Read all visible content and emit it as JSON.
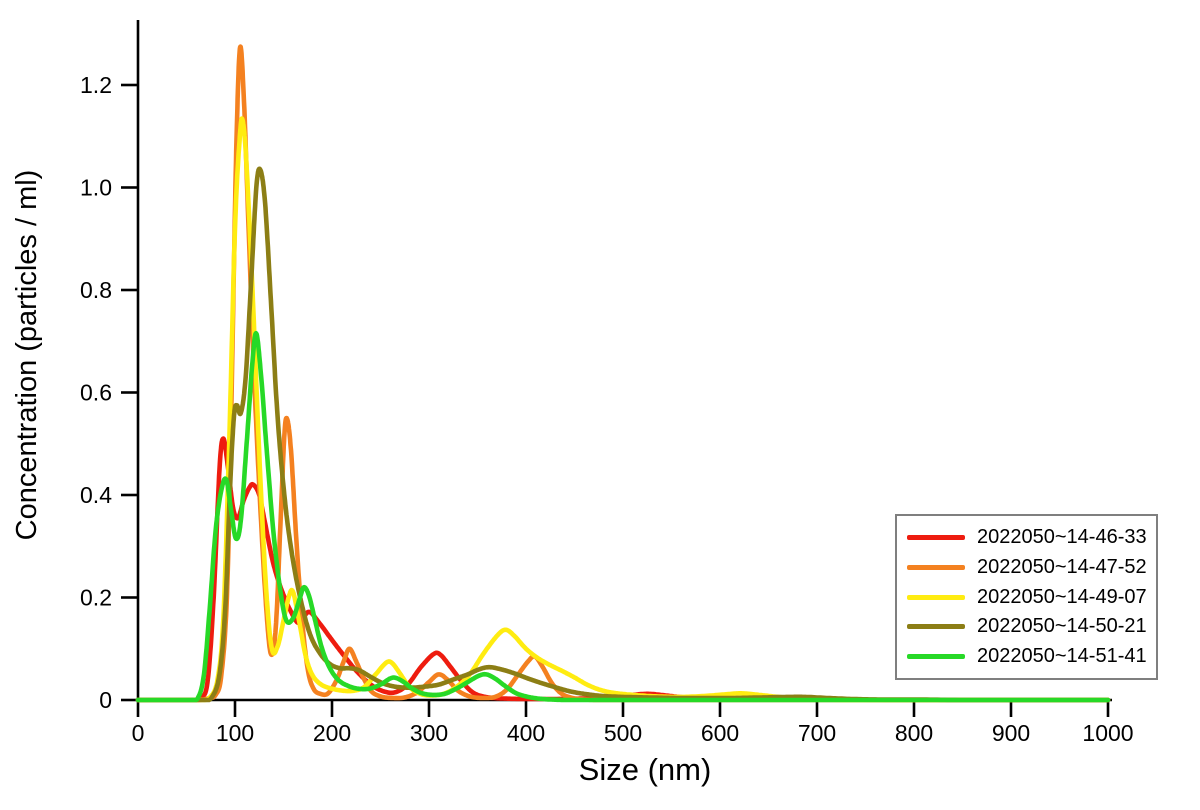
{
  "chart_data": {
    "type": "line",
    "title": "",
    "xlabel": "Size (nm)",
    "ylabel": "Concentration (particles / ml)",
    "xlim": [
      0,
      1000
    ],
    "ylim": [
      0,
      1.3
    ],
    "x_ticks": [
      0,
      100,
      200,
      300,
      400,
      500,
      600,
      700,
      800,
      900,
      1000
    ],
    "y_ticks": [
      0,
      0.2,
      0.4,
      0.6,
      0.8,
      1.0,
      1.2
    ],
    "y_tick_labels": [
      "0",
      "0.2",
      "0.4",
      "0.6",
      "0.8",
      "1.0",
      "1.2"
    ],
    "grid": false,
    "axis_color": "#000000",
    "legend": {
      "position": "right-middle",
      "border_color": "#7f7f7f",
      "background": "#ffffff"
    },
    "series": [
      {
        "name": "2022050~14-46-33",
        "color": "#ee1c0f",
        "points": [
          [
            0,
            0
          ],
          [
            40,
            0
          ],
          [
            58,
            0
          ],
          [
            66,
            0.005
          ],
          [
            72,
            0.04
          ],
          [
            78,
            0.2
          ],
          [
            84,
            0.45
          ],
          [
            88,
            0.51
          ],
          [
            93,
            0.45
          ],
          [
            98,
            0.375
          ],
          [
            103,
            0.355
          ],
          [
            109,
            0.39
          ],
          [
            115,
            0.415
          ],
          [
            119,
            0.42
          ],
          [
            125,
            0.4
          ],
          [
            131,
            0.345
          ],
          [
            139,
            0.27
          ],
          [
            147,
            0.22
          ],
          [
            157,
            0.175
          ],
          [
            166,
            0.15
          ],
          [
            176,
            0.172
          ],
          [
            187,
            0.15
          ],
          [
            200,
            0.117
          ],
          [
            213,
            0.085
          ],
          [
            226,
            0.055
          ],
          [
            240,
            0.03
          ],
          [
            253,
            0.017
          ],
          [
            265,
            0.015
          ],
          [
            278,
            0.03
          ],
          [
            292,
            0.065
          ],
          [
            305,
            0.09
          ],
          [
            312,
            0.088
          ],
          [
            322,
            0.065
          ],
          [
            333,
            0.038
          ],
          [
            345,
            0.015
          ],
          [
            358,
            0.006
          ],
          [
            375,
            0.003
          ],
          [
            400,
            0.002
          ],
          [
            430,
            0.002
          ],
          [
            460,
            0.003
          ],
          [
            490,
            0.007
          ],
          [
            510,
            0.01
          ],
          [
            527,
            0.012
          ],
          [
            548,
            0.008
          ],
          [
            570,
            0.004
          ],
          [
            600,
            0.002
          ],
          [
            640,
            0.001
          ],
          [
            700,
            0.001
          ],
          [
            800,
            0
          ],
          [
            900,
            0
          ],
          [
            1000,
            0
          ]
        ]
      },
      {
        "name": "2022050~14-47-52",
        "color": "#f48120",
        "points": [
          [
            0,
            0
          ],
          [
            40,
            0
          ],
          [
            62,
            0
          ],
          [
            72,
            0.003
          ],
          [
            80,
            0.01
          ],
          [
            86,
            0.05
          ],
          [
            92,
            0.22
          ],
          [
            97,
            0.65
          ],
          [
            101,
            1.05
          ],
          [
            105,
            1.27
          ],
          [
            109,
            1.18
          ],
          [
            114,
            0.92
          ],
          [
            120,
            0.62
          ],
          [
            126,
            0.38
          ],
          [
            132,
            0.185
          ],
          [
            137,
            0.09
          ],
          [
            142,
            0.14
          ],
          [
            147,
            0.35
          ],
          [
            151,
            0.52
          ],
          [
            154,
            0.547
          ],
          [
            158,
            0.48
          ],
          [
            163,
            0.32
          ],
          [
            169,
            0.16
          ],
          [
            175,
            0.06
          ],
          [
            181,
            0.022
          ],
          [
            188,
            0.012
          ],
          [
            196,
            0.013
          ],
          [
            205,
            0.04
          ],
          [
            212,
            0.075
          ],
          [
            218,
            0.1
          ],
          [
            225,
            0.075
          ],
          [
            232,
            0.045
          ],
          [
            240,
            0.018
          ],
          [
            250,
            0.007
          ],
          [
            262,
            0.004
          ],
          [
            275,
            0.005
          ],
          [
            288,
            0.015
          ],
          [
            300,
            0.035
          ],
          [
            310,
            0.05
          ],
          [
            320,
            0.038
          ],
          [
            330,
            0.018
          ],
          [
            342,
            0.007
          ],
          [
            355,
            0.004
          ],
          [
            368,
            0.006
          ],
          [
            380,
            0.02
          ],
          [
            392,
            0.05
          ],
          [
            402,
            0.075
          ],
          [
            409,
            0.085
          ],
          [
            417,
            0.065
          ],
          [
            427,
            0.032
          ],
          [
            437,
            0.012
          ],
          [
            448,
            0.004
          ],
          [
            460,
            0.001
          ],
          [
            480,
            0
          ],
          [
            520,
            0
          ],
          [
            600,
            0
          ],
          [
            700,
            0
          ],
          [
            800,
            0
          ],
          [
            900,
            0
          ],
          [
            1000,
            0
          ]
        ]
      },
      {
        "name": "2022050~14-49-07",
        "color": "#ffec11",
        "points": [
          [
            0,
            0
          ],
          [
            40,
            0
          ],
          [
            64,
            0
          ],
          [
            74,
            0.005
          ],
          [
            82,
            0.04
          ],
          [
            88,
            0.16
          ],
          [
            94,
            0.5
          ],
          [
            100,
            0.92
          ],
          [
            105,
            1.1
          ],
          [
            108,
            1.13
          ],
          [
            112,
            1.04
          ],
          [
            118,
            0.8
          ],
          [
            125,
            0.48
          ],
          [
            132,
            0.22
          ],
          [
            138,
            0.1
          ],
          [
            144,
            0.105
          ],
          [
            150,
            0.155
          ],
          [
            156,
            0.205
          ],
          [
            160,
            0.21
          ],
          [
            166,
            0.155
          ],
          [
            173,
            0.085
          ],
          [
            180,
            0.048
          ],
          [
            189,
            0.03
          ],
          [
            200,
            0.022
          ],
          [
            212,
            0.018
          ],
          [
            222,
            0.018
          ],
          [
            233,
            0.025
          ],
          [
            245,
            0.05
          ],
          [
            256,
            0.073
          ],
          [
            262,
            0.072
          ],
          [
            270,
            0.052
          ],
          [
            280,
            0.025
          ],
          [
            291,
            0.012
          ],
          [
            302,
            0.009
          ],
          [
            315,
            0.012
          ],
          [
            328,
            0.025
          ],
          [
            342,
            0.05
          ],
          [
            356,
            0.09
          ],
          [
            370,
            0.125
          ],
          [
            379,
            0.137
          ],
          [
            388,
            0.125
          ],
          [
            400,
            0.1
          ],
          [
            412,
            0.082
          ],
          [
            425,
            0.068
          ],
          [
            438,
            0.056
          ],
          [
            450,
            0.044
          ],
          [
            463,
            0.03
          ],
          [
            476,
            0.02
          ],
          [
            490,
            0.014
          ],
          [
            510,
            0.01
          ],
          [
            535,
            0.007
          ],
          [
            560,
            0.006
          ],
          [
            585,
            0.008
          ],
          [
            605,
            0.011
          ],
          [
            622,
            0.013
          ],
          [
            640,
            0.01
          ],
          [
            660,
            0.006
          ],
          [
            680,
            0.003
          ],
          [
            705,
            0.001
          ],
          [
            740,
            0
          ],
          [
            800,
            0
          ],
          [
            900,
            0
          ],
          [
            1000,
            0
          ]
        ]
      },
      {
        "name": "2022050~14-50-21",
        "color": "#8c7e15",
        "points": [
          [
            0,
            0
          ],
          [
            40,
            0
          ],
          [
            66,
            0
          ],
          [
            76,
            0.005
          ],
          [
            84,
            0.05
          ],
          [
            90,
            0.18
          ],
          [
            95,
            0.42
          ],
          [
            99,
            0.555
          ],
          [
            102,
            0.575
          ],
          [
            106,
            0.56
          ],
          [
            111,
            0.63
          ],
          [
            117,
            0.83
          ],
          [
            122,
            1.0
          ],
          [
            126,
            1.035
          ],
          [
            131,
            0.97
          ],
          [
            137,
            0.78
          ],
          [
            144,
            0.55
          ],
          [
            152,
            0.38
          ],
          [
            160,
            0.27
          ],
          [
            169,
            0.185
          ],
          [
            178,
            0.125
          ],
          [
            188,
            0.09
          ],
          [
            198,
            0.07
          ],
          [
            208,
            0.062
          ],
          [
            218,
            0.062
          ],
          [
            228,
            0.058
          ],
          [
            240,
            0.045
          ],
          [
            252,
            0.033
          ],
          [
            265,
            0.026
          ],
          [
            280,
            0.024
          ],
          [
            295,
            0.026
          ],
          [
            310,
            0.03
          ],
          [
            325,
            0.04
          ],
          [
            340,
            0.05
          ],
          [
            352,
            0.06
          ],
          [
            362,
            0.064
          ],
          [
            374,
            0.06
          ],
          [
            388,
            0.052
          ],
          [
            402,
            0.042
          ],
          [
            416,
            0.033
          ],
          [
            430,
            0.025
          ],
          [
            445,
            0.017
          ],
          [
            460,
            0.012
          ],
          [
            478,
            0.008
          ],
          [
            500,
            0.006
          ],
          [
            525,
            0.005
          ],
          [
            555,
            0.004
          ],
          [
            585,
            0.004
          ],
          [
            615,
            0.004
          ],
          [
            645,
            0.005
          ],
          [
            670,
            0.006
          ],
          [
            688,
            0.006
          ],
          [
            710,
            0.004
          ],
          [
            735,
            0.002
          ],
          [
            765,
            0.001
          ],
          [
            800,
            0.001
          ],
          [
            850,
            0
          ],
          [
            900,
            0
          ],
          [
            1000,
            0
          ]
        ]
      },
      {
        "name": "2022050~14-51-41",
        "color": "#27d927",
        "points": [
          [
            0,
            0
          ],
          [
            40,
            0
          ],
          [
            55,
            0
          ],
          [
            62,
            0.005
          ],
          [
            68,
            0.05
          ],
          [
            74,
            0.18
          ],
          [
            80,
            0.33
          ],
          [
            86,
            0.41
          ],
          [
            91,
            0.43
          ],
          [
            96,
            0.37
          ],
          [
            101,
            0.315
          ],
          [
            106,
            0.35
          ],
          [
            112,
            0.5
          ],
          [
            118,
            0.66
          ],
          [
            122,
            0.715
          ],
          [
            127,
            0.63
          ],
          [
            133,
            0.48
          ],
          [
            140,
            0.32
          ],
          [
            147,
            0.21
          ],
          [
            153,
            0.155
          ],
          [
            160,
            0.16
          ],
          [
            167,
            0.2
          ],
          [
            171,
            0.22
          ],
          [
            176,
            0.205
          ],
          [
            182,
            0.16
          ],
          [
            189,
            0.105
          ],
          [
            197,
            0.065
          ],
          [
            206,
            0.04
          ],
          [
            216,
            0.028
          ],
          [
            227,
            0.022
          ],
          [
            238,
            0.022
          ],
          [
            250,
            0.03
          ],
          [
            260,
            0.042
          ],
          [
            266,
            0.043
          ],
          [
            274,
            0.035
          ],
          [
            283,
            0.022
          ],
          [
            293,
            0.013
          ],
          [
            304,
            0.01
          ],
          [
            316,
            0.012
          ],
          [
            328,
            0.022
          ],
          [
            340,
            0.035
          ],
          [
            351,
            0.047
          ],
          [
            359,
            0.05
          ],
          [
            368,
            0.042
          ],
          [
            378,
            0.028
          ],
          [
            389,
            0.014
          ],
          [
            400,
            0.007
          ],
          [
            412,
            0.003
          ],
          [
            425,
            0.001
          ],
          [
            445,
            0
          ],
          [
            480,
            0
          ],
          [
            550,
            0
          ],
          [
            650,
            0
          ],
          [
            750,
            0
          ],
          [
            850,
            0
          ],
          [
            1000,
            0
          ]
        ]
      }
    ]
  }
}
